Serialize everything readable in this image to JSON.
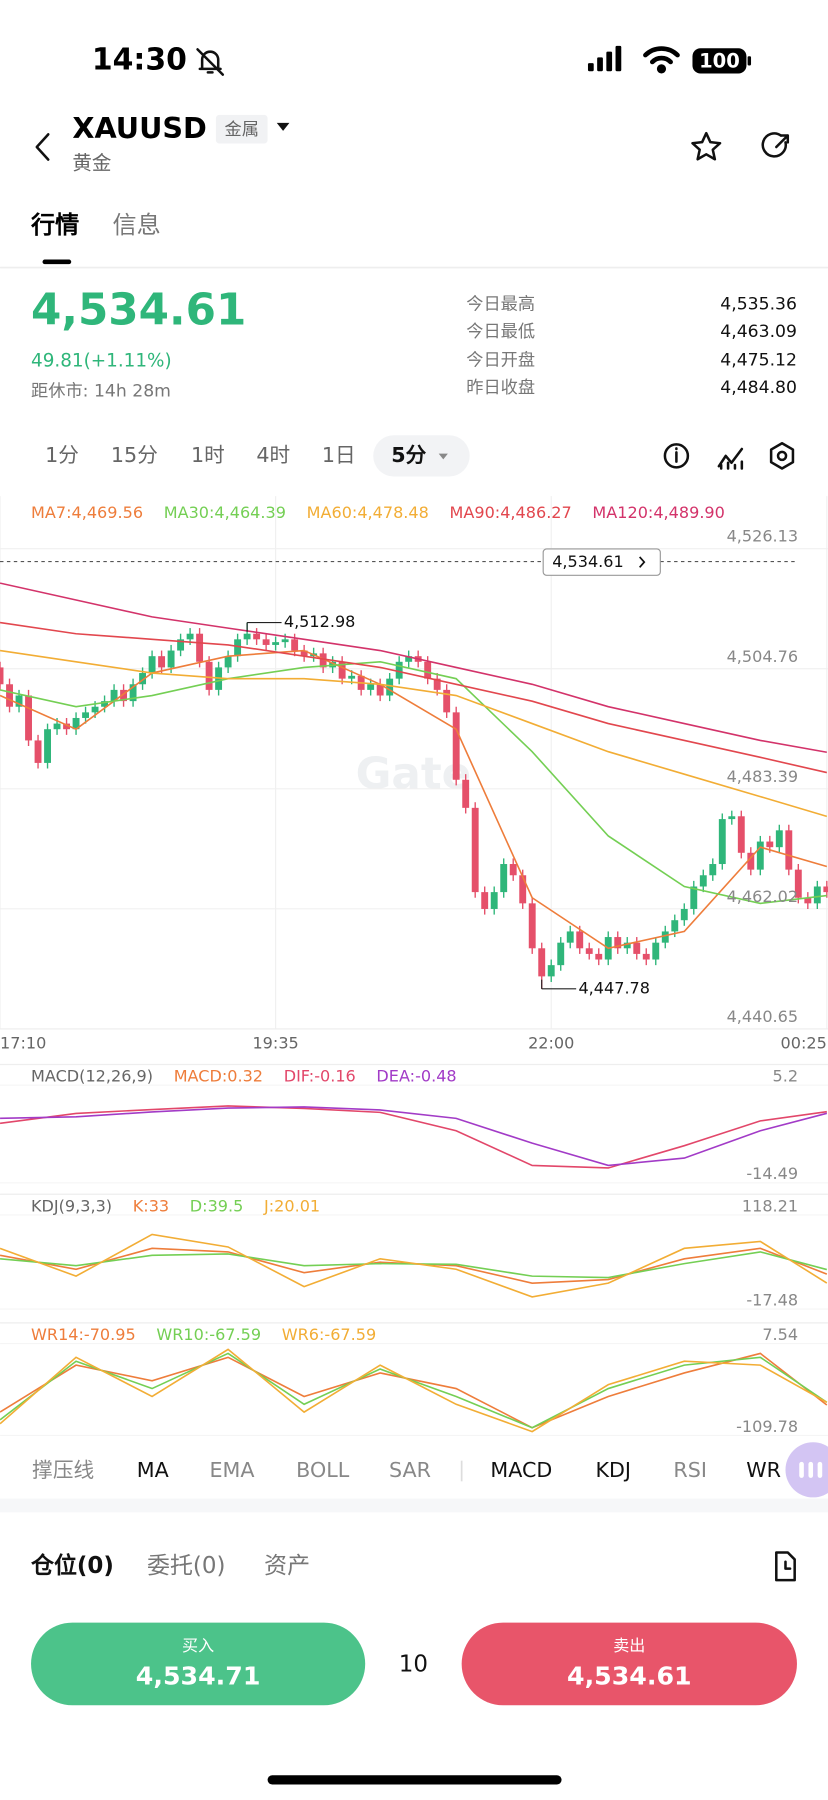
{
  "status_bar": {
    "time": "14:30",
    "battery": "100"
  },
  "header": {
    "symbol": "XAUUSD",
    "tag": "金属",
    "name": "黄金"
  },
  "tabs": [
    "行情",
    "信息"
  ],
  "quote": {
    "price": "4,534.61",
    "change": "49.81(+1.11%)",
    "close_in": "距休市: 14h 28m"
  },
  "stats": [
    {
      "label": "今日最高",
      "value": "4,535.36"
    },
    {
      "label": "今日最低",
      "value": "4,463.09"
    },
    {
      "label": "今日开盘",
      "value": "4,475.12"
    },
    {
      "label": "昨日收盘",
      "value": "4,484.80"
    }
  ],
  "intervals": [
    "1分",
    "15分",
    "1时",
    "4时",
    "1日"
  ],
  "selected_interval": "5分",
  "chart_data": {
    "type": "candlestick",
    "up_color": "#2fb67a",
    "down_color": "#e5506a",
    "xlim": [
      0,
      87
    ],
    "xticks": [
      {
        "value": 0,
        "label": "17:10"
      },
      {
        "value": 29,
        "label": "19:35"
      },
      {
        "value": 58,
        "label": "22:00"
      },
      {
        "value": 87,
        "label": "00:25"
      }
    ],
    "ylim": [
      4440.65,
      4535.5
    ],
    "yticks": [
      {
        "value": 4526.13,
        "label": "4,526.13"
      },
      {
        "value": 4504.76,
        "label": "4,504.76"
      },
      {
        "value": 4483.39,
        "label": "4,483.39"
      },
      {
        "value": 4462.02,
        "label": "4,462.02"
      },
      {
        "value": 4440.65,
        "label": "4,440.65"
      }
    ],
    "grid": true,
    "last_price": "4,534.61",
    "watermark": "Gate",
    "high_marker": {
      "value": 4512.98,
      "label": "4,512.98"
    },
    "low_marker": {
      "value": 4447.78,
      "label": "4,447.78"
    },
    "open": [
      4505,
      4502,
      4498,
      4500,
      4492,
      4488,
      4494,
      4495,
      4494,
      4496,
      4497,
      4498,
      4499,
      4501,
      4499,
      4502,
      4504,
      4507,
      4505,
      4508,
      4510,
      4511,
      4506,
      4501,
      4505,
      4507,
      4510,
      4511,
      4510,
      4509,
      4509.5,
      4510,
      4508,
      4507,
      4507.5,
      4505,
      4506,
      4503,
      4503.5,
      4501,
      4502,
      4500,
      4503,
      4506,
      4507,
      4506,
      4503,
      4501,
      4497,
      4485,
      4480,
      4465,
      4462,
      4465,
      4470,
      4468,
      4463,
      4455,
      4450,
      4452,
      4456,
      4458,
      4455,
      4454,
      4453,
      4457,
      4455,
      4456,
      4454,
      4453,
      4456,
      4458,
      4460,
      4462,
      4466,
      4468,
      4470,
      4478,
      4478.5,
      4472,
      4469,
      4474,
      4473,
      4476,
      4469,
      4464,
      4463,
      4466
    ],
    "high": [
      4506,
      4503,
      4501,
      4501,
      4493,
      4495,
      4496,
      4496,
      4497,
      4498,
      4499,
      4500,
      4502,
      4502,
      4503,
      4505,
      4508,
      4508,
      4509,
      4511,
      4512,
      4512,
      4507,
      4506,
      4508,
      4511,
      4512.98,
      4512,
      4511,
      4510.5,
      4511,
      4511,
      4509,
      4508.5,
      4508.5,
      4507,
      4507,
      4504.5,
      4504.5,
      4503,
      4503,
      4504,
      4507,
      4508,
      4508,
      4507,
      4504,
      4502,
      4498,
      4486,
      4481,
      4466,
      4466,
      4471,
      4471,
      4469,
      4464,
      4456,
      4453,
      4457,
      4459,
      4459,
      4456,
      4455,
      4458,
      4458,
      4457,
      4457,
      4455,
      4457,
      4459,
      4461,
      4463,
      4467,
      4469,
      4471,
      4479,
      4479.5,
      4479.5,
      4473,
      4475,
      4475,
      4477,
      4477,
      4470,
      4465,
      4467,
      4467
    ],
    "low": [
      4501,
      4497,
      4497,
      4491,
      4487,
      4487,
      4493,
      4493,
      4493,
      4495,
      4496,
      4497,
      4498,
      4498,
      4498,
      4501,
      4503,
      4504,
      4504,
      4507,
      4509,
      4505,
      4500,
      4500,
      4504,
      4506,
      4509,
      4509,
      4508,
      4508,
      4508.5,
      4507,
      4506,
      4506,
      4504,
      4504,
      4502,
      4502,
      4500,
      4500,
      4499,
      4499,
      4502,
      4505,
      4505,
      4502,
      4500,
      4496,
      4484,
      4479,
      4464,
      4461,
      4461,
      4464,
      4467,
      4462,
      4454,
      4447.78,
      4449,
      4451,
      4455,
      4454,
      4453,
      4452,
      4452,
      4454,
      4454,
      4453,
      4452,
      4452,
      4455,
      4457,
      4459,
      4461,
      4465,
      4467,
      4469,
      4477,
      4471,
      4468,
      4468,
      4472,
      4472,
      4468,
      4463,
      4462,
      4462,
      4464
    ],
    "close": [
      4502,
      4498,
      4500,
      4492,
      4488,
      4494,
      4495,
      4494,
      4496,
      4497,
      4498,
      4499,
      4501,
      4499,
      4502,
      4504,
      4507,
      4505,
      4508,
      4510,
      4511,
      4506,
      4501,
      4505,
      4507,
      4510,
      4511,
      4510,
      4509,
      4509.5,
      4510,
      4508,
      4507,
      4507.5,
      4505,
      4506,
      4503,
      4503.5,
      4501,
      4502,
      4500,
      4503,
      4506,
      4507,
      4506,
      4503,
      4501,
      4497,
      4485,
      4480,
      4465,
      4462,
      4465,
      4470,
      4468,
      4463,
      4455,
      4450,
      4452,
      4456,
      4458,
      4455,
      4454,
      4453,
      4457,
      4455,
      4456,
      4454,
      4453,
      4456,
      4458,
      4460,
      4462,
      4466,
      4468,
      4470,
      4478,
      4478.5,
      4472,
      4469,
      4474,
      4473,
      4476,
      4469,
      4464,
      4463,
      4466,
      4465
    ],
    "ma": [
      {
        "label": "MA7:4,469.56",
        "color": "#ee7d3b",
        "x": [
          0,
          8,
          16,
          24,
          32,
          40,
          48,
          56,
          64,
          72,
          80,
          87
        ],
        "values": [
          4500,
          4494,
          4504,
          4507,
          4508,
          4502,
          4494,
          4464,
          4455,
          4458,
          4473,
          4469.56
        ]
      },
      {
        "label": "MA30:4,464.39",
        "color": "#74cf54",
        "x": [
          0,
          8,
          16,
          24,
          32,
          40,
          48,
          56,
          64,
          72,
          80,
          87
        ],
        "values": [
          4501,
          4498,
          4500,
          4503,
          4505,
          4506,
          4503,
          4490,
          4475,
          4466,
          4463,
          4464.39
        ]
      },
      {
        "label": "MA60:4,478.48",
        "color": "#f2ad35",
        "x": [
          0,
          8,
          16,
          24,
          32,
          40,
          48,
          56,
          64,
          72,
          80,
          87
        ],
        "values": [
          4508,
          4506,
          4504,
          4503,
          4503,
          4502,
          4500,
          4495,
          4490,
          4486,
          4482,
          4478.48
        ]
      },
      {
        "label": "MA90:4,486.27",
        "color": "#e2474e",
        "x": [
          0,
          8,
          16,
          24,
          32,
          40,
          48,
          56,
          64,
          72,
          80,
          87
        ],
        "values": [
          4513,
          4511,
          4510,
          4509,
          4507,
          4505,
          4502,
          4499,
          4495,
          4492,
          4489,
          4486.27
        ]
      },
      {
        "label": "MA120:4,489.90",
        "color": "#d3336a",
        "x": [
          0,
          8,
          16,
          24,
          32,
          40,
          48,
          56,
          64,
          72,
          80,
          87
        ],
        "values": [
          4520,
          4517,
          4514,
          4512,
          4510,
          4508,
          4505,
          4502,
          4498,
          4495,
          4492,
          4489.9
        ]
      }
    ],
    "indicators": [
      {
        "title": "MACD(12,26,9)",
        "histogram_label": {
          "label": "MACD:0.32",
          "color": "#ee7d3b"
        },
        "ylim": [
          -14.49,
          5.2
        ],
        "yticks": [
          5.2,
          -14.49
        ],
        "series": [
          {
            "label": "DIF:-0.16",
            "color": "#e2476a",
            "x": [
              0,
              8,
              16,
              24,
              32,
              40,
              48,
              56,
              64,
              72,
              80,
              87
            ],
            "values": [
              -2.5,
              -0.5,
              0.3,
              1.0,
              0.5,
              -0.3,
              -4,
              -11,
              -11.5,
              -7,
              -2,
              -0.16
            ]
          },
          {
            "label": "DEA:-0.48",
            "color": "#a23bc7",
            "x": [
              0,
              8,
              16,
              24,
              32,
              40,
              48,
              56,
              64,
              72,
              80,
              87
            ],
            "values": [
              -1.5,
              -1.2,
              -0.2,
              0.6,
              0.8,
              0.2,
              -1.5,
              -6.5,
              -11,
              -9.5,
              -4,
              -0.48
            ]
          }
        ]
      },
      {
        "title": "KDJ(9,3,3)",
        "ylim": [
          -17.48,
          118.21
        ],
        "yticks": [
          118.21,
          -17.48
        ],
        "series": [
          {
            "label": "K:33",
            "color": "#ee7d3b",
            "x": [
              0,
              8,
              16,
              24,
              32,
              40,
              48,
              56,
              64,
              72,
              80,
              87
            ],
            "values": [
              60,
              40,
              70,
              65,
              35,
              50,
              45,
              20,
              25,
              55,
              70,
              33
            ]
          },
          {
            "label": "D:39.5",
            "color": "#74cf54",
            "x": [
              0,
              8,
              16,
              24,
              32,
              40,
              48,
              56,
              64,
              72,
              80,
              87
            ],
            "values": [
              55,
              45,
              60,
              62,
              45,
              48,
              47,
              30,
              28,
              48,
              65,
              39.5
            ]
          },
          {
            "label": "J:20.01",
            "color": "#f2ad35",
            "x": [
              0,
              8,
              16,
              24,
              32,
              40,
              48,
              56,
              64,
              72,
              80,
              87
            ],
            "values": [
              70,
              30,
              90,
              72,
              15,
              55,
              40,
              0,
              20,
              70,
              80,
              20.01
            ]
          }
        ]
      },
      {
        "title": null,
        "ylim": [
          -109.78,
          7.54
        ],
        "yticks": [
          7.54,
          -109.78
        ],
        "series": [
          {
            "label": "WR14:-70.95",
            "color": "#ee7d3b",
            "x": [
              0,
              8,
              16,
              24,
              32,
              40,
              48,
              56,
              64,
              72,
              80,
              87
            ],
            "values": [
              -80,
              -20,
              -40,
              -10,
              -60,
              -30,
              -50,
              -100,
              -60,
              -30,
              -5,
              -70.95
            ]
          },
          {
            "label": "WR10:-67.59",
            "color": "#74cf54",
            "x": [
              0,
              8,
              16,
              24,
              32,
              40,
              48,
              56,
              64,
              72,
              80,
              87
            ],
            "values": [
              -90,
              -15,
              -50,
              -5,
              -70,
              -25,
              -60,
              -100,
              -50,
              -20,
              -10,
              -67.59
            ]
          },
          {
            "label": "WR6:-67.59",
            "color": "#f2ad35",
            "x": [
              0,
              8,
              16,
              24,
              32,
              40,
              48,
              56,
              64,
              72,
              80,
              87
            ],
            "values": [
              -95,
              -10,
              -60,
              0,
              -80,
              -20,
              -70,
              -105,
              -45,
              -15,
              -20,
              -67.59
            ]
          }
        ]
      }
    ]
  },
  "indicator_tabs": [
    {
      "label": "撑压线",
      "active": false
    },
    {
      "label": "MA",
      "active": true
    },
    {
      "label": "EMA",
      "active": false
    },
    {
      "label": "BOLL",
      "active": false
    },
    {
      "label": "SAR",
      "active": false
    },
    {
      "label": "MACD",
      "active": true
    },
    {
      "label": "KDJ",
      "active": true
    },
    {
      "label": "RSI",
      "active": false
    },
    {
      "label": "WR",
      "active": true
    }
  ],
  "position_tabs": [
    "仓位(0)",
    "委托(0)",
    "资产"
  ],
  "trade": {
    "buy_label": "买入",
    "buy_price": "4,534.71",
    "quantity": "10",
    "sell_label": "卖出",
    "sell_price": "4,534.61"
  }
}
